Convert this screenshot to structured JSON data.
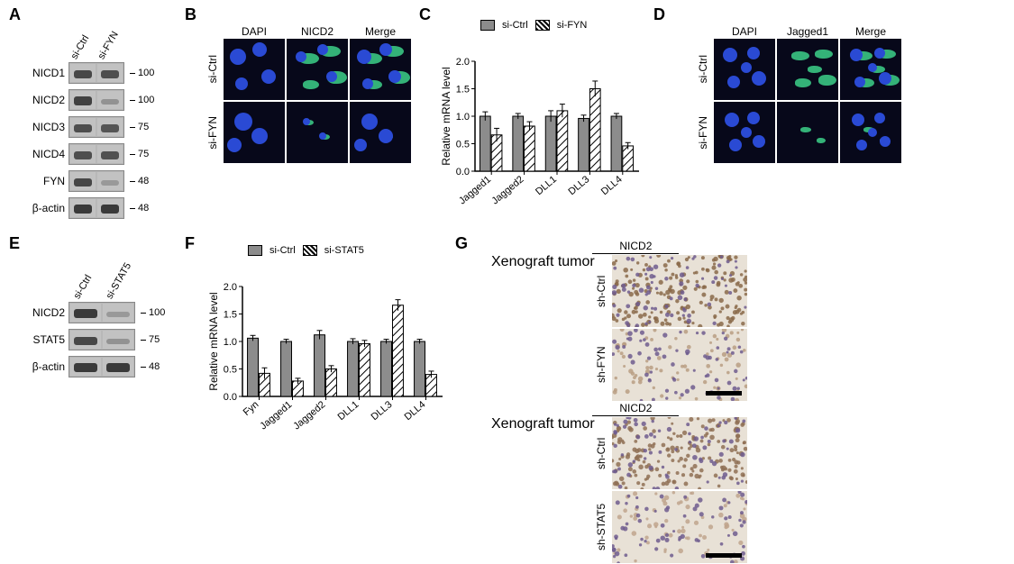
{
  "panel_labels": {
    "A": "A",
    "B": "B",
    "C": "C",
    "D": "D",
    "E": "E",
    "F": "F",
    "G": "G"
  },
  "panelA": {
    "lane_labels": [
      "si-Ctrl",
      "si-FYN"
    ],
    "rows": [
      {
        "name": "NICD1",
        "mw": "100",
        "bands": [
          0.85,
          0.8
        ]
      },
      {
        "name": "NICD2",
        "mw": "100",
        "bands": [
          0.9,
          0.3
        ]
      },
      {
        "name": "NICD3",
        "mw": "75",
        "bands": [
          0.8,
          0.75
        ]
      },
      {
        "name": "NICD4",
        "mw": "75",
        "bands": [
          0.8,
          0.78
        ]
      },
      {
        "name": "FYN",
        "mw": "48",
        "bands": [
          0.85,
          0.25
        ]
      },
      {
        "name": "β-actin",
        "mw": "48",
        "bands": [
          0.95,
          0.95
        ]
      }
    ],
    "colors": {
      "band_dark": "#2f2f2f",
      "band_light": "#a0a0a0",
      "mw_text": "#000000"
    }
  },
  "panelB": {
    "col_headers": [
      "DAPI",
      "NICD2",
      "Merge"
    ],
    "row_headers": [
      "si-Ctrl",
      "si-FYN"
    ],
    "cells": [
      [
        {
          "nuclei": [
            [
              16,
              20,
              9
            ],
            [
              40,
              12,
              8
            ],
            [
              50,
              42,
              8
            ],
            [
              20,
              50,
              7
            ]
          ],
          "cyto": []
        },
        {
          "nuclei": [
            [
              16,
              20,
              6
            ],
            [
              40,
              12,
              6
            ],
            [
              50,
              42,
              6
            ]
          ],
          "cyto": [
            [
              14,
              16,
              22,
              12
            ],
            [
              38,
              8,
              22,
              12
            ],
            [
              45,
              36,
              22,
              14
            ],
            [
              18,
              46,
              18,
              10
            ]
          ]
        },
        {
          "nuclei": [
            [
              16,
              20,
              8
            ],
            [
              40,
              12,
              7
            ],
            [
              50,
              42,
              7
            ],
            [
              20,
              50,
              6
            ]
          ],
          "cyto": [
            [
              14,
              16,
              22,
              12
            ],
            [
              38,
              8,
              22,
              12
            ],
            [
              45,
              36,
              22,
              14
            ],
            [
              18,
              46,
              18,
              10
            ]
          ]
        }
      ],
      [
        {
          "nuclei": [
            [
              22,
              22,
              10
            ],
            [
              40,
              38,
              9
            ],
            [
              12,
              48,
              8
            ]
          ],
          "cyto": []
        },
        {
          "nuclei": [
            [
              22,
              22,
              4
            ],
            [
              40,
              38,
              4
            ]
          ],
          "cyto": [
            [
              20,
              20,
              10,
              6
            ],
            [
              38,
              36,
              10,
              6
            ]
          ]
        },
        {
          "nuclei": [
            [
              22,
              22,
              9
            ],
            [
              40,
              38,
              8
            ],
            [
              12,
              48,
              7
            ]
          ],
          "cyto": [
            [
              20,
              20,
              10,
              6
            ],
            [
              38,
              36,
              10,
              6
            ]
          ]
        }
      ]
    ],
    "colors": {
      "bg": "#07081a",
      "nucleus": "#2a4ad4",
      "cyto": "#3cd08a"
    }
  },
  "panelC": {
    "type": "bar",
    "title": "",
    "ylabel": "Relative mRNA level",
    "ylim": [
      0,
      2.0
    ],
    "ytick_step": 0.5,
    "categories": [
      "Jagged1",
      "Jagged2",
      "DLL1",
      "DLL3",
      "DLL4"
    ],
    "series": [
      {
        "name": "si-Ctrl",
        "fill": "solid",
        "color": "#8c8c8c",
        "values": [
          1.0,
          1.0,
          1.0,
          0.96,
          1.0
        ],
        "errors": [
          0.08,
          0.05,
          0.1,
          0.06,
          0.05
        ]
      },
      {
        "name": "si-FYN",
        "fill": "hatch",
        "color": "#000000",
        "values": [
          0.66,
          0.82,
          1.1,
          1.5,
          0.46
        ],
        "errors": [
          0.12,
          0.08,
          0.12,
          0.14,
          0.06
        ]
      }
    ],
    "bar_width": 0.35,
    "label_fontsize": 11,
    "axis_color": "#000000",
    "legend_pos": "top"
  },
  "panelD": {
    "col_headers": [
      "DAPI",
      "Jagged1",
      "Merge"
    ],
    "row_headers": [
      "si-Ctrl",
      "si-FYN"
    ],
    "cells": [
      [
        {
          "nuclei": [
            [
              18,
              18,
              8
            ],
            [
              44,
              16,
              7
            ],
            [
              50,
              44,
              8
            ],
            [
              22,
              48,
              7
            ],
            [
              36,
              32,
              6
            ]
          ],
          "cyto": []
        },
        {
          "nuclei": [],
          "cyto": [
            [
              16,
              14,
              20,
              10
            ],
            [
              42,
              12,
              20,
              10
            ],
            [
              46,
              40,
              20,
              12
            ],
            [
              20,
              44,
              18,
              10
            ],
            [
              34,
              30,
              16,
              8
            ]
          ]
        },
        {
          "nuclei": [
            [
              18,
              18,
              7
            ],
            [
              44,
              16,
              6
            ],
            [
              50,
              44,
              7
            ],
            [
              22,
              48,
              6
            ],
            [
              36,
              32,
              5
            ]
          ],
          "cyto": [
            [
              16,
              14,
              20,
              10
            ],
            [
              42,
              12,
              20,
              10
            ],
            [
              46,
              40,
              20,
              12
            ],
            [
              20,
              44,
              18,
              10
            ],
            [
              34,
              30,
              16,
              8
            ]
          ]
        }
      ],
      [
        {
          "nuclei": [
            [
              20,
              20,
              8
            ],
            [
              44,
              18,
              7
            ],
            [
              50,
              44,
              7
            ],
            [
              24,
              48,
              7
            ],
            [
              36,
              34,
              6
            ]
          ],
          "cyto": []
        },
        {
          "nuclei": [],
          "cyto": [
            [
              26,
              28,
              12,
              6
            ],
            [
              44,
              40,
              10,
              6
            ]
          ]
        },
        {
          "nuclei": [
            [
              20,
              20,
              7
            ],
            [
              44,
              18,
              6
            ],
            [
              50,
              44,
              6
            ],
            [
              24,
              48,
              6
            ],
            [
              36,
              34,
              5
            ]
          ],
          "cyto": [
            [
              26,
              28,
              12,
              6
            ],
            [
              44,
              40,
              10,
              6
            ]
          ]
        }
      ]
    ],
    "colors": {
      "bg": "#07081a",
      "nucleus": "#2a4ad4",
      "cyto": "#3cd08a"
    }
  },
  "panelE": {
    "lane_labels": [
      "si-Ctrl",
      "si-STAT5"
    ],
    "rows": [
      {
        "name": "NICD2",
        "mw": "100",
        "bands": [
          0.95,
          0.25
        ]
      },
      {
        "name": "STAT5",
        "mw": "75",
        "bands": [
          0.85,
          0.3
        ]
      },
      {
        "name": "β-actin",
        "mw": "48",
        "bands": [
          0.95,
          0.95
        ]
      }
    ],
    "colors": {
      "band_dark": "#232323"
    }
  },
  "panelF": {
    "type": "bar",
    "ylabel": "Relative mRNA level",
    "ylim": [
      0,
      2.0
    ],
    "ytick_step": 0.5,
    "categories": [
      "Fyn",
      "Jagged1",
      "Jagged2",
      "DLL1",
      "DLL3",
      "DLL4"
    ],
    "series": [
      {
        "name": "si-Ctrl",
        "fill": "solid",
        "color": "#8c8c8c",
        "values": [
          1.06,
          1.0,
          1.12,
          1.0,
          1.0,
          1.0
        ],
        "errors": [
          0.05,
          0.04,
          0.08,
          0.05,
          0.04,
          0.04
        ]
      },
      {
        "name": "si-STAT5",
        "fill": "hatch",
        "color": "#000000",
        "values": [
          0.42,
          0.28,
          0.5,
          0.96,
          1.66,
          0.4
        ],
        "errors": [
          0.1,
          0.05,
          0.06,
          0.06,
          0.1,
          0.06
        ]
      }
    ],
    "bar_width": 0.35,
    "label_fontsize": 11,
    "axis_color": "#000000",
    "legend_pos": "top"
  },
  "panelG": {
    "blocks": [
      {
        "header": "NICD2",
        "ylabel": "Xenograft tumor",
        "rows": [
          {
            "label": "sh-Ctrl",
            "density": 0.85,
            "color": "#8a6a4a"
          },
          {
            "label": "sh-FYN",
            "density": 0.35,
            "color": "#b89d82",
            "scale_bar": true
          }
        ]
      },
      {
        "header": "NICD2",
        "ylabel": "Xenograft tumor",
        "rows": [
          {
            "label": "sh-Ctrl",
            "density": 0.8,
            "color": "#8f7055"
          },
          {
            "label": "sh-STAT5",
            "density": 0.3,
            "color": "#bfa58d",
            "scale_bar": true
          }
        ]
      }
    ],
    "bg": "#e8e1d6",
    "nucleus": "#6e5c8e"
  }
}
